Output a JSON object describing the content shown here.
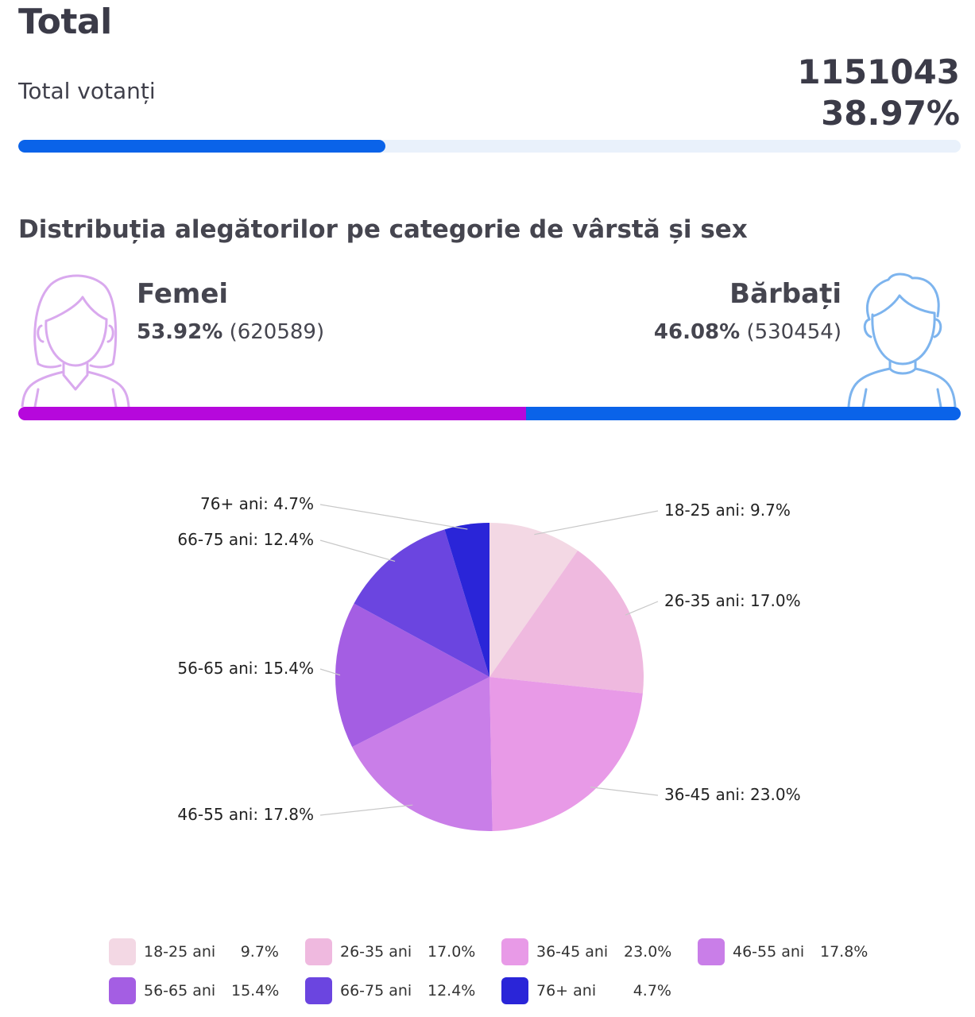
{
  "header": {
    "title": "Total"
  },
  "voters": {
    "label": "Total votanți",
    "count": "1151043",
    "percent": "38.97%",
    "progress_fraction": 0.3897
  },
  "section": {
    "title": "Distribuția alegătorilor pe categorie de vârstă și sex"
  },
  "gender": {
    "female": {
      "name": "Femei",
      "percent": "53.92%",
      "count": "(620589)",
      "color": "#b608dc",
      "fraction": 0.5392
    },
    "male": {
      "name": "Bărbați",
      "percent": "46.08%",
      "count": "(530454)",
      "color": "#0a63e9",
      "fraction": 0.4608
    }
  },
  "chart_data": {
    "type": "pie",
    "categories": [
      "18-25 ani",
      "26-35 ani",
      "36-45 ani",
      "46-55 ani",
      "56-65 ani",
      "66-75 ani",
      "76+ ani"
    ],
    "values": [
      9.7,
      17.0,
      23.0,
      17.8,
      15.4,
      12.4,
      4.7
    ],
    "value_labels": [
      "9.7%",
      "17.0%",
      "23.0%",
      "17.8%",
      "15.4%",
      "12.4%",
      "4.7%"
    ],
    "slice_labels": [
      "18-25 ani: 9.7%",
      "26-35 ani: 17.0%",
      "36-45 ani: 23.0%",
      "46-55 ani: 17.8%",
      "56-65 ani: 15.4%",
      "66-75 ani: 12.4%",
      "76+ ani: 4.7%"
    ],
    "colors": [
      "#f3d8e4",
      "#efb9df",
      "#e89ae7",
      "#c97ee8",
      "#a45ee3",
      "#6b45e0",
      "#2a25d8"
    ],
    "legend_position": "bottom"
  }
}
